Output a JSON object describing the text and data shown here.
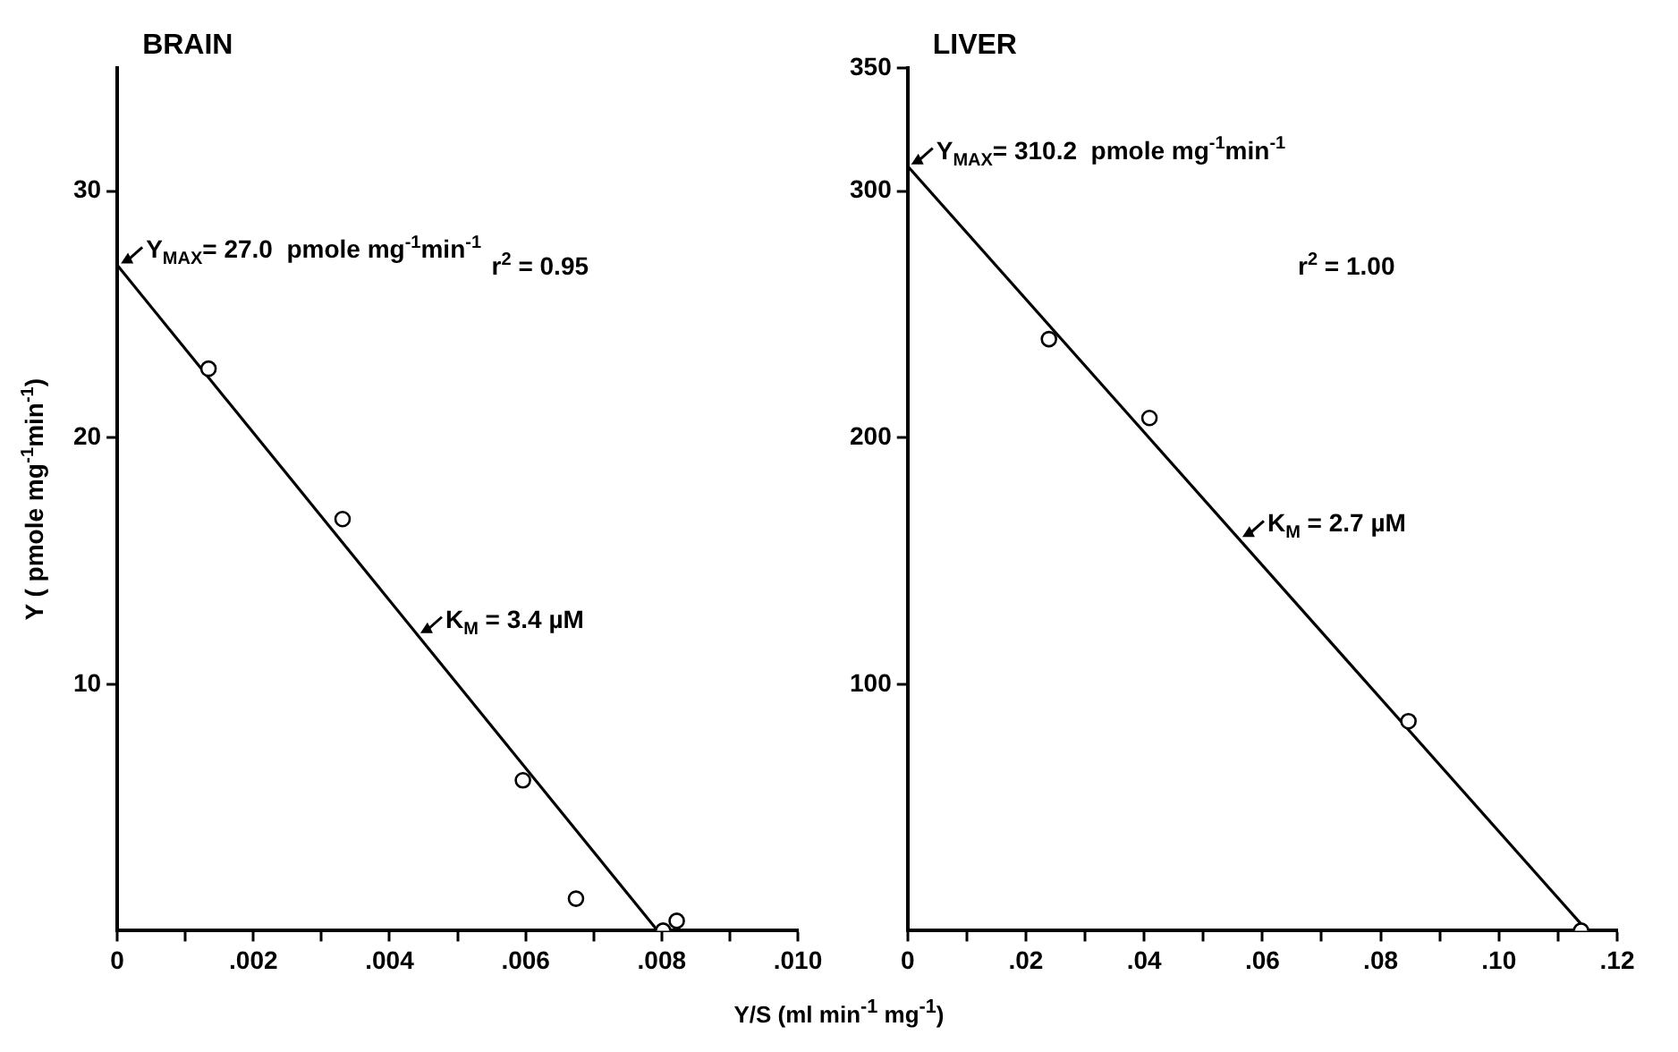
{
  "chart_data": [
    {
      "type": "scatter",
      "title": "BRAIN",
      "xlabel": "Y/S  (ml min$^{-1}$ mg$^{-1}$)",
      "ylabel": "Y ( pmole mg$^{-1}$min$^{-1}$)",
      "xlim": [
        0,
        0.01
      ],
      "ylim": [
        0,
        35
      ],
      "xticks": [
        0,
        {
          "value": 0.001,
          "label": null
        },
        {
          "value": 0.002,
          "label": ".002"
        },
        {
          "value": 0.003,
          "label": null
        },
        {
          "value": 0.004,
          "label": ".004"
        },
        {
          "value": 0.005,
          "label": null
        },
        {
          "value": 0.006,
          "label": ".006"
        },
        {
          "value": 0.007,
          "label": null
        },
        {
          "value": 0.008,
          "label": ".008"
        },
        {
          "value": 0.009,
          "label": null
        },
        {
          "value": 0.01,
          "label": ".010"
        }
      ],
      "yticks": [
        10,
        20,
        30
      ],
      "legend": false,
      "series": [
        {
          "type": "scatter",
          "marker": "circle",
          "color": "#000000",
          "x": [
            0.00134,
            0.00331,
            0.00596,
            0.00674,
            0.00802,
            0.00822
          ],
          "values": [
            22.8,
            16.7,
            6.1,
            1.3,
            0,
            0.4
          ]
        },
        {
          "type": "line",
          "marker": "none",
          "color": "#000000",
          "x": [
            0,
            0.00794
          ],
          "values": [
            27.0,
            0
          ]
        }
      ],
      "annotations": [
        {
          "text": "Y$_{MAX}$= 27.0  pmole mg$^{-1}$min$^{-1}$",
          "x": 0,
          "y": 27.0
        },
        "r$^{2}$ = 0.95",
        {
          "text": "K$_{M}$ = 3.4 µM",
          "x": 0.0044,
          "y": 12.0
        }
      ]
    },
    {
      "type": "scatter",
      "title": "LIVER",
      "xlim": [
        0,
        0.12
      ],
      "ylim": [
        0,
        350
      ],
      "xticks": [
        0,
        {
          "value": 0.01,
          "label": null
        },
        {
          "value": 0.02,
          "label": ".02"
        },
        {
          "value": 0.03,
          "label": null
        },
        {
          "value": 0.04,
          "label": ".04"
        },
        {
          "value": 0.05,
          "label": null
        },
        {
          "value": 0.06,
          "label": ".06"
        },
        {
          "value": 0.07,
          "label": null
        },
        {
          "value": 0.08,
          "label": ".08"
        },
        {
          "value": 0.09,
          "label": null
        },
        {
          "value": 0.1,
          "label": ".10"
        },
        {
          "value": 0.11,
          "label": null
        },
        {
          "value": 0.12,
          "label": ".12"
        }
      ],
      "yticks": [
        100,
        200,
        300,
        350
      ],
      "legend": false,
      "series": [
        {
          "type": "scatter",
          "marker": "circle",
          "color": "#000000",
          "x": [
            0.0239,
            0.0409,
            0.0847,
            0.1139
          ],
          "values": [
            240,
            208,
            85,
            0
          ]
        },
        {
          "type": "line",
          "marker": "none",
          "color": "#000000",
          "x": [
            0,
            0.1149
          ],
          "values": [
            310.2,
            0
          ]
        }
      ],
      "annotations": [
        {
          "text": "Y$_{MAX}$= 310.2  pmole mg$^{-1}$min$^{-1}$",
          "x": 0,
          "y": 310.2
        },
        "r$^{2}$ = 1.00",
        {
          "text": "K$_{M}$ = 2.7 µM",
          "x": 0.056,
          "y": 159
        }
      ]
    }
  ]
}
